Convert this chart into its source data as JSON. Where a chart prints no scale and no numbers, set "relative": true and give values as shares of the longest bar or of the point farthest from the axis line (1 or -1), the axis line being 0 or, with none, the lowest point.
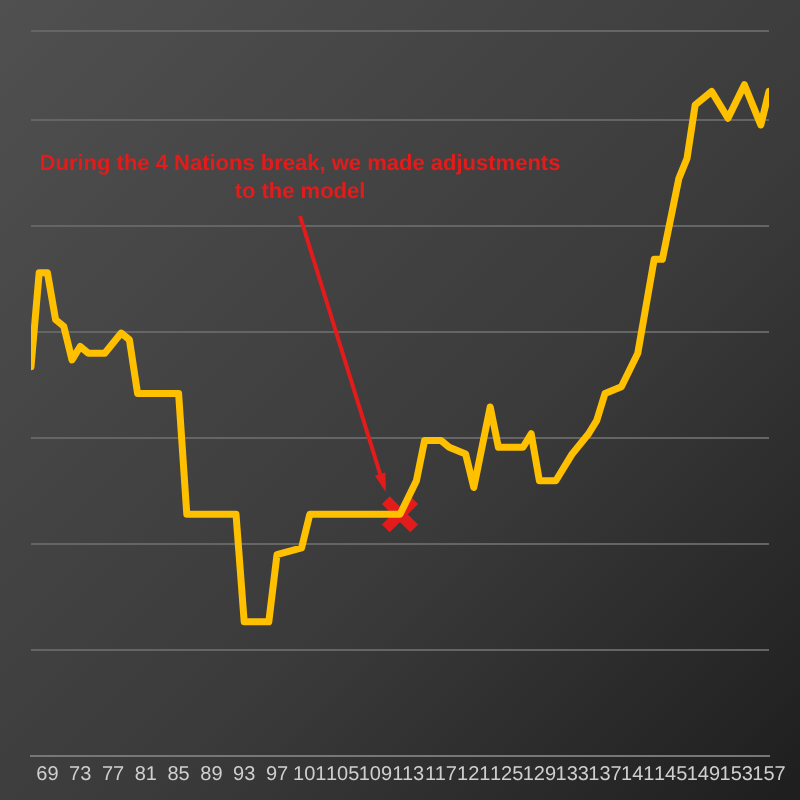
{
  "chart_data": {
    "type": "line",
    "relative": true,
    "grid": "y",
    "line_style": "solid",
    "series": [
      {
        "color": "#ffc000",
        "marker": "none",
        "x": [
          67,
          68,
          69,
          70,
          71,
          72,
          73,
          74,
          76,
          78,
          79,
          80,
          85,
          86,
          92,
          93,
          96,
          97,
          100,
          101,
          112,
          114,
          115,
          117,
          118,
          120,
          121,
          123,
          124,
          127,
          128,
          129,
          131,
          133,
          135,
          136,
          137,
          139,
          141,
          143,
          144,
          146,
          147,
          148,
          150,
          152,
          154,
          156,
          157
        ],
        "values": [
          0.58,
          0.72,
          0.72,
          0.65,
          0.64,
          0.59,
          0.61,
          0.6,
          0.6,
          0.63,
          0.62,
          0.54,
          0.54,
          0.36,
          0.36,
          0.2,
          0.2,
          0.3,
          0.31,
          0.36,
          0.36,
          0.41,
          0.47,
          0.47,
          0.46,
          0.45,
          0.4,
          0.52,
          0.46,
          0.46,
          0.48,
          0.41,
          0.41,
          0.45,
          0.48,
          0.5,
          0.54,
          0.55,
          0.6,
          0.74,
          0.74,
          0.86,
          0.89,
          0.97,
          0.99,
          0.95,
          1.0,
          0.94,
          0.99
        ]
      },
      {
        "type": "scatter",
        "color": "#e31b1b",
        "marker": "cross",
        "x": [
          112
        ],
        "values": [
          0.36
        ]
      }
    ],
    "xlim": [
      67,
      157
    ],
    "xticks": [
      69,
      73,
      77,
      81,
      85,
      89,
      93,
      97,
      101,
      105,
      109,
      113,
      117,
      121,
      125,
      129,
      133,
      137,
      141,
      145,
      149,
      153,
      157
    ],
    "annotations": [
      "During the 4 Nations break, we made adjustments to the model"
    ]
  }
}
